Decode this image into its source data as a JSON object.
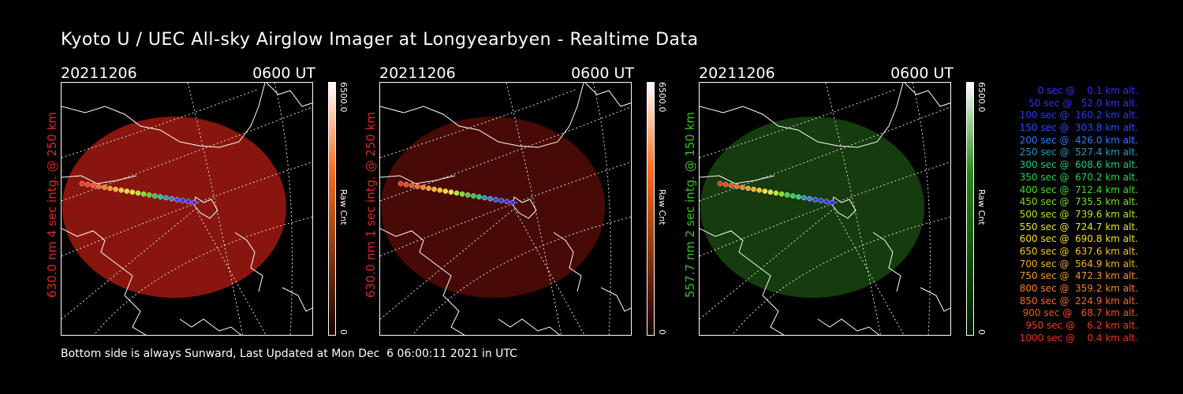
{
  "title": "Kyoto U / UEC All-sky Airglow Imager at Longyearbyen - Realtime Data",
  "footer": "Bottom side is always Sunward, Last Updated at Mon Dec  6 06:00:11 2021 in UTC",
  "panels": [
    {
      "date": "20211206",
      "time": "0600 UT",
      "ylabel": "630.0 nm 4 sec intg. @ 250 km",
      "label_color": "#e0281e",
      "image_color": "#a01a10",
      "image_opacity": 0.85,
      "colorbar_top": "#ffffff",
      "colorbar_mid": "#ff6a1a",
      "colorbar_bottom": "#1a0000",
      "cbar_max": "6500.0",
      "cbar_min": "0",
      "cbar_label": "Raw Cnt"
    },
    {
      "date": "20211206",
      "time": "0600 UT",
      "ylabel": "630.0 nm 1 sec intg. @ 250 km",
      "label_color": "#e0281e",
      "image_color": "#5a0c08",
      "image_opacity": 0.8,
      "colorbar_top": "#ffffff",
      "colorbar_mid": "#ff6a1a",
      "colorbar_bottom": "#1a0000",
      "cbar_max": "6500.0",
      "cbar_min": "0",
      "cbar_label": "Raw Cnt"
    },
    {
      "date": "20211206",
      "time": "0600 UT",
      "ylabel": "557.7 nm 2 sec intg. @ 150 km",
      "label_color": "#34c21a",
      "image_color": "#1a4a12",
      "image_opacity": 0.8,
      "colorbar_top": "#ffffff",
      "colorbar_mid": "#2a8a14",
      "colorbar_bottom": "#001a00",
      "cbar_max": "6500.0",
      "cbar_min": "0",
      "cbar_label": "Raw Cnt"
    }
  ],
  "legend": [
    {
      "text": "   0 sec @    0.1 km alt.",
      "color": "#3a2aff"
    },
    {
      "text": "  50 sec @   52.0 km alt.",
      "color": "#3a2aff"
    },
    {
      "text": " 100 sec @  160.2 km alt.",
      "color": "#2a3aff"
    },
    {
      "text": " 150 sec @  303.8 km alt.",
      "color": "#2a4aff"
    },
    {
      "text": " 200 sec @  426.0 km alt.",
      "color": "#2a7aff"
    },
    {
      "text": " 250 sec @  527.4 km alt.",
      "color": "#1a9ac8"
    },
    {
      "text": " 300 sec @  608.6 km alt.",
      "color": "#1ac88a"
    },
    {
      "text": " 350 sec @  670.2 km alt.",
      "color": "#1ad84a"
    },
    {
      "text": " 400 sec @  712.4 km alt.",
      "color": "#3ae01a"
    },
    {
      "text": " 450 sec @  735.5 km alt.",
      "color": "#7ae01a"
    },
    {
      "text": " 500 sec @  739.6 km alt.",
      "color": "#b8e81a"
    },
    {
      "text": " 550 sec @  724.7 km alt.",
      "color": "#e8e81a"
    },
    {
      "text": " 600 sec @  690.8 km alt.",
      "color": "#f8e01a"
    },
    {
      "text": " 650 sec @  637.6 km alt.",
      "color": "#f8c81a"
    },
    {
      "text": " 700 sec @  564.9 km alt.",
      "color": "#f8b01a"
    },
    {
      "text": " 750 sec @  472.3 km alt.",
      "color": "#f8981a"
    },
    {
      "text": " 800 sec @  359.2 km alt.",
      "color": "#f8801a"
    },
    {
      "text": " 850 sec @  224.9 km alt.",
      "color": "#f86a1a"
    },
    {
      "text": " 900 sec @   68.7 km alt.",
      "color": "#f8501a"
    },
    {
      "text": " 950 sec @    6.2 km alt.",
      "color": "#f83a1a"
    },
    {
      "text": "1000 sec @    0.4 km alt.",
      "color": "#f82a1a"
    }
  ]
}
